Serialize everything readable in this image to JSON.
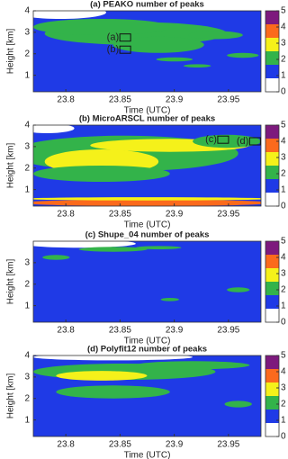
{
  "chart_data": [
    {
      "type": "heatmap",
      "title": "(a) PEAKO number of peaks",
      "xlabel": "Time (UTC)",
      "ylabel": "Height [km]",
      "xlim": [
        23.77,
        23.98
      ],
      "xticks": [
        23.8,
        23.85,
        23.9,
        23.95
      ],
      "ylim": [
        0.23,
        4
      ],
      "yticks": [
        1,
        2,
        3,
        4
      ],
      "colorbar": {
        "ticks": [
          0,
          1,
          2,
          3,
          4,
          5
        ],
        "colors": [
          "#ffffff",
          "#1f3ae6",
          "#33b34a",
          "#f5f11a",
          "#fb6a1c",
          "#7d1a7d"
        ]
      },
      "annotations": [
        "(a)",
        "(b)"
      ]
    },
    {
      "type": "heatmap",
      "title": "(b) MicroARSCL number of peaks",
      "xlabel": "Time (UTC)",
      "ylabel": "Height [km]",
      "xlim": [
        23.77,
        23.98
      ],
      "xticks": [
        23.8,
        23.85,
        23.9,
        23.95
      ],
      "ylim": [
        0.23,
        4
      ],
      "yticks": [
        1,
        2,
        3,
        4
      ],
      "colorbar": {
        "ticks": [
          0,
          1,
          2,
          3,
          4,
          5
        ],
        "colors": [
          "#ffffff",
          "#1f3ae6",
          "#33b34a",
          "#f5f11a",
          "#fb6a1c",
          "#7d1a7d"
        ]
      },
      "annotations": [
        "(c)",
        "(d)"
      ]
    },
    {
      "type": "heatmap",
      "title": "(c) Shupe_04 number of peaks",
      "xlabel": "Time (UTC)",
      "ylabel": "Height [km]",
      "xlim": [
        23.77,
        23.98
      ],
      "xticks": [
        23.8,
        23.85,
        23.9,
        23.95
      ],
      "ylim": [
        0.23,
        4
      ],
      "yticks": [
        1,
        2,
        3
      ],
      "colorbar": {
        "ticks": [
          0,
          1,
          2,
          3,
          4,
          5
        ],
        "colors": [
          "#ffffff",
          "#1f3ae6",
          "#33b34a",
          "#f5f11a",
          "#fb6a1c",
          "#7d1a7d"
        ]
      }
    },
    {
      "type": "heatmap",
      "title": "(d) Polyfit12 number of peaks",
      "xlabel": "Time (UTC)",
      "ylabel": "Height [km]",
      "xlim": [
        23.77,
        23.98
      ],
      "xticks": [
        23.8,
        23.85,
        23.9,
        23.95
      ],
      "ylim": [
        0.23,
        4
      ],
      "yticks": [
        1,
        2,
        3,
        4
      ],
      "colorbar": {
        "ticks": [
          0,
          1,
          2,
          3,
          4,
          5
        ],
        "colors": [
          "#ffffff",
          "#1f3ae6",
          "#33b34a",
          "#f5f11a",
          "#fb6a1c",
          "#7d1a7d"
        ]
      }
    }
  ]
}
